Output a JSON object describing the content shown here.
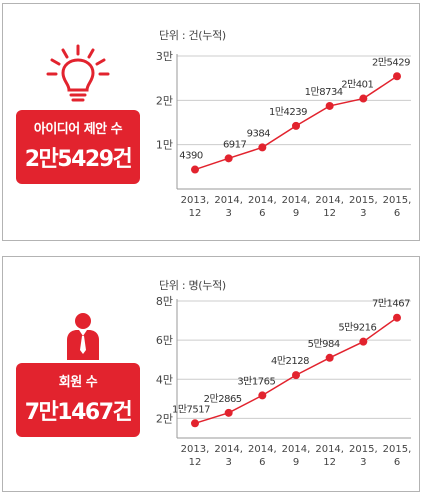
{
  "panels": [
    {
      "badge_label": "아이디어 제안 수",
      "badge_value": "2만5429건",
      "unit": "단위 : 건(누적)"
    },
    {
      "badge_label": "회원 수",
      "badge_value": "7만1467건",
      "unit": "단위 : 명(누적)"
    }
  ],
  "colors": {
    "accent": "#e2232e",
    "line": "#e2232e",
    "grid": "#cccccc",
    "axis": "#999999",
    "text": "#444444"
  },
  "icons": [
    "lightbulb-icon",
    "person-icon"
  ],
  "chart_data": [
    {
      "type": "line",
      "title": "",
      "categories": [
        [
          "2013,",
          "12"
        ],
        [
          "2014,",
          "3"
        ],
        [
          "2014,",
          "6"
        ],
        [
          "2014,",
          "9"
        ],
        [
          "2014,",
          "12"
        ],
        [
          "2015,",
          "3"
        ],
        [
          "2015,",
          "6"
        ]
      ],
      "values": [
        4390,
        6917,
        9384,
        14239,
        18734,
        20401,
        25429
      ],
      "data_labels": [
        "4390",
        "6917",
        "9384",
        "1만4239",
        "1만8734",
        "2만401",
        "2만5429"
      ],
      "yticks": [
        10000,
        20000,
        30000
      ],
      "ytick_labels": [
        "1만",
        "2만",
        "3만"
      ],
      "ylim": [
        0,
        30000
      ],
      "grid": true
    },
    {
      "type": "line",
      "title": "",
      "categories": [
        [
          "2013,",
          "12"
        ],
        [
          "2014,",
          "3"
        ],
        [
          "2014,",
          "6"
        ],
        [
          "2014,",
          "9"
        ],
        [
          "2014,",
          "12"
        ],
        [
          "2015,",
          "3"
        ],
        [
          "2015,",
          "6"
        ]
      ],
      "values": [
        17517,
        22865,
        31765,
        42128,
        50984,
        59216,
        71467
      ],
      "data_labels": [
        "1만7517",
        "2만2865",
        "3만1765",
        "4만2128",
        "5만984",
        "5만9216",
        "7만1467"
      ],
      "yticks": [
        20000,
        40000,
        60000,
        80000
      ],
      "ytick_labels": [
        "2만",
        "4만",
        "6만",
        "8만"
      ],
      "ylim": [
        10000,
        80000
      ],
      "grid": true
    }
  ]
}
